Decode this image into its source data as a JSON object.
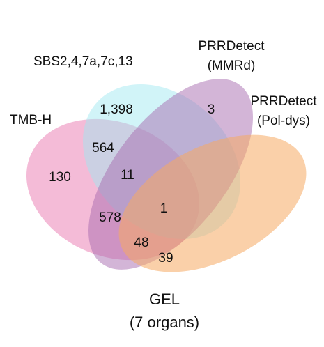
{
  "sets": [
    {
      "label": "TMB-H",
      "color": "#EE92BF"
    },
    {
      "label": "SBS2,4,7a,7c,13",
      "color": "#9EE8F1"
    },
    {
      "label_lines": [
        "PRRDetect",
        "(MMRd)"
      ],
      "color": "#A76BB0"
    },
    {
      "label_lines": [
        "PRRDetect",
        "(Pol-dys)"
      ],
      "color": "#F6AA62"
    }
  ],
  "counts": {
    "tmb_only": "130",
    "sbs_only": "1,398",
    "mmrd_only": "3",
    "tmb_sbs": "564",
    "tmb_sbs_mmrd": "11",
    "all_four": "1",
    "tmb_mmrd": "578",
    "tmb_mmrd_poldys": "48",
    "tmb_poldys": "39"
  },
  "footer_lines": [
    "GEL",
    "(7 organs)"
  ]
}
